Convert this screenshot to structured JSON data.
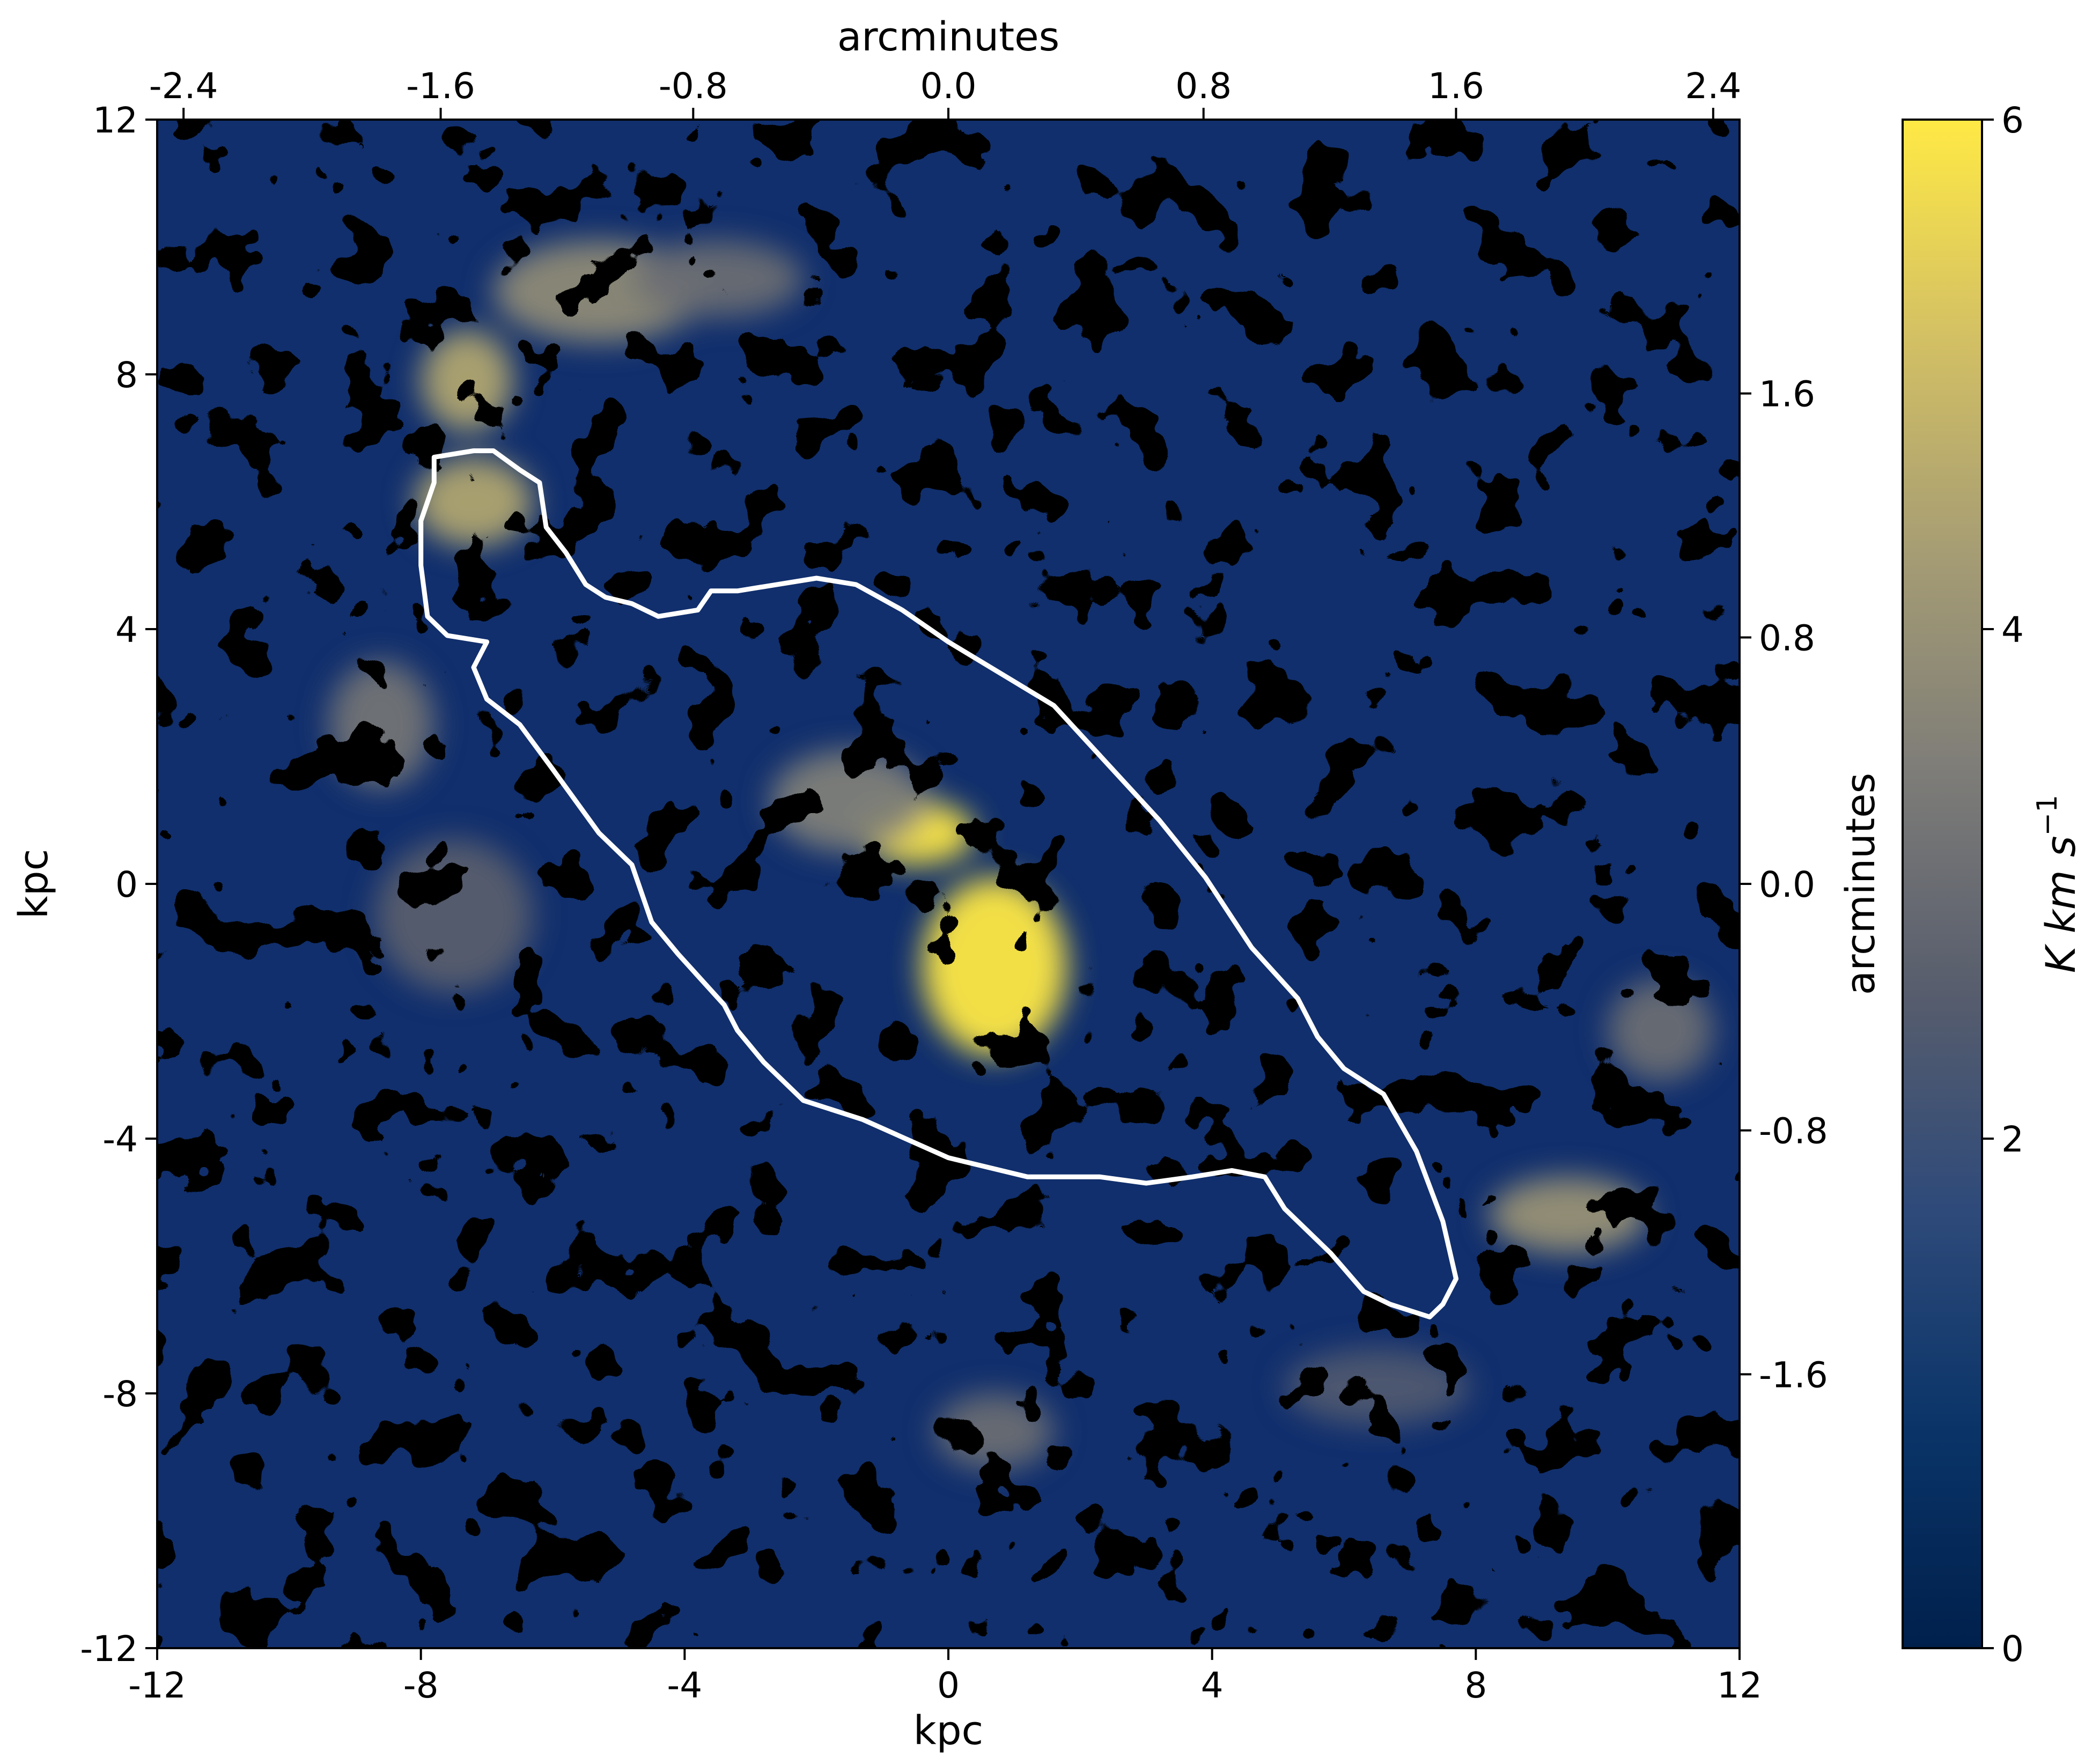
{
  "chart_data": {
    "type": "heatmap",
    "description_units": "kpc",
    "x_axis": {
      "label": "kpc",
      "range": [
        -12,
        12
      ],
      "ticks": [
        -12,
        -8,
        -4,
        0,
        4,
        8,
        12
      ],
      "tick_labels": [
        "-12",
        "-8",
        "-4",
        "0",
        "4",
        "8",
        "12"
      ]
    },
    "y_axis": {
      "label": "kpc",
      "range": [
        -12,
        12
      ],
      "ticks": [
        -12,
        -8,
        -4,
        0,
        4,
        8,
        12
      ],
      "tick_labels": [
        "-12",
        "-8",
        "-4",
        "0",
        "4",
        "8",
        "12"
      ]
    },
    "top_axis": {
      "label": "arcminutes",
      "tick_positions_kpc": [
        -11.6,
        -7.7,
        -3.87,
        0,
        3.87,
        7.7,
        11.6
      ],
      "tick_labels": [
        "-2.4",
        "-1.6",
        "-0.8",
        "0.0",
        "0.8",
        "1.6",
        "2.4"
      ]
    },
    "right_axis": {
      "label": "arcminutes",
      "tick_positions_kpc": [
        7.7,
        3.87,
        0,
        -3.87,
        -7.7
      ],
      "tick_labels": [
        "1.6",
        "0.8",
        "0.0",
        "-0.8",
        "-1.6"
      ]
    },
    "colorbar": {
      "label": "K km s",
      "label_superscript": "−1",
      "range": [
        0,
        6
      ],
      "ticks": [
        0,
        2,
        4,
        6
      ],
      "tick_labels": [
        "0",
        "2",
        "4",
        "6"
      ],
      "colormap": "cividis",
      "stops": [
        "#00204c",
        "#0a3468",
        "#2e4a7a",
        "#575d6d",
        "#7d7c78",
        "#a59c74",
        "#d3c064",
        "#ffe945"
      ]
    },
    "emission_peaks_kpc": [
      {
        "x": 0.7,
        "y": -1.3,
        "value": 6.0,
        "rx": 1.1,
        "ry": 1.4
      },
      {
        "x": -0.5,
        "y": 0.8,
        "value": 6.0,
        "rx": 0.9,
        "ry": 0.5
      },
      {
        "x": -1.5,
        "y": 1.3,
        "value": 3.5,
        "rx": 1.2,
        "ry": 0.8
      },
      {
        "x": -7.2,
        "y": 6.0,
        "value": 4.5,
        "rx": 0.9,
        "ry": 0.7
      },
      {
        "x": -7.3,
        "y": 7.9,
        "value": 4.5,
        "rx": 0.7,
        "ry": 0.8
      },
      {
        "x": -5.3,
        "y": 9.3,
        "value": 3.8,
        "rx": 1.6,
        "ry": 0.8
      },
      {
        "x": -3.5,
        "y": 9.5,
        "value": 3.0,
        "rx": 1.3,
        "ry": 0.6
      },
      {
        "x": -8.6,
        "y": 2.5,
        "value": 3.2,
        "rx": 0.8,
        "ry": 1.0
      },
      {
        "x": 9.4,
        "y": -5.2,
        "value": 4.0,
        "rx": 1.2,
        "ry": 0.6
      },
      {
        "x": 10.8,
        "y": -2.3,
        "value": 3.0,
        "rx": 0.8,
        "ry": 0.8
      },
      {
        "x": 0.7,
        "y": -8.6,
        "value": 3.0,
        "rx": 0.9,
        "ry": 0.6
      },
      {
        "x": -7.5,
        "y": -0.5,
        "value": 2.6,
        "rx": 1.2,
        "ry": 1.2
      },
      {
        "x": 6.5,
        "y": -7.9,
        "value": 2.4,
        "rx": 1.4,
        "ry": 0.6
      }
    ],
    "contour_kpc": [
      [
        -7.8,
        6.7
      ],
      [
        -7.2,
        6.8
      ],
      [
        -6.9,
        6.8
      ],
      [
        -6.5,
        6.5
      ],
      [
        -6.2,
        6.3
      ],
      [
        -6.1,
        5.6
      ],
      [
        -5.8,
        5.2
      ],
      [
        -5.5,
        4.7
      ],
      [
        -5.2,
        4.5
      ],
      [
        -4.8,
        4.4
      ],
      [
        -4.4,
        4.2
      ],
      [
        -3.8,
        4.3
      ],
      [
        -3.6,
        4.6
      ],
      [
        -3.2,
        4.6
      ],
      [
        -2.6,
        4.7
      ],
      [
        -2.0,
        4.8
      ],
      [
        -1.4,
        4.7
      ],
      [
        -0.7,
        4.3
      ],
      [
        0,
        3.8
      ],
      [
        0.8,
        3.3
      ],
      [
        1.6,
        2.8
      ],
      [
        2.4,
        1.9
      ],
      [
        3.2,
        1.0
      ],
      [
        3.9,
        0.1
      ],
      [
        4.6,
        -1.0
      ],
      [
        5.3,
        -1.8
      ],
      [
        5.6,
        -2.4
      ],
      [
        6.0,
        -2.9
      ],
      [
        6.6,
        -3.3
      ],
      [
        7.1,
        -4.2
      ],
      [
        7.5,
        -5.3
      ],
      [
        7.7,
        -6.2
      ],
      [
        7.5,
        -6.6
      ],
      [
        7.3,
        -6.8
      ],
      [
        6.7,
        -6.6
      ],
      [
        6.3,
        -6.4
      ],
      [
        5.8,
        -5.8
      ],
      [
        5.1,
        -5.1
      ],
      [
        4.8,
        -4.6
      ],
      [
        4.3,
        -4.5
      ],
      [
        3.7,
        -4.6
      ],
      [
        3.0,
        -4.7
      ],
      [
        2.3,
        -4.6
      ],
      [
        1.2,
        -4.6
      ],
      [
        0,
        -4.3
      ],
      [
        -1.3,
        -3.7
      ],
      [
        -2.2,
        -3.4
      ],
      [
        -2.8,
        -2.8
      ],
      [
        -3.2,
        -2.3
      ],
      [
        -3.4,
        -1.9
      ],
      [
        -4.1,
        -1.1
      ],
      [
        -4.5,
        -0.6
      ],
      [
        -4.8,
        0.3
      ],
      [
        -5.3,
        0.8
      ],
      [
        -6.0,
        1.8
      ],
      [
        -6.5,
        2.5
      ],
      [
        -7.0,
        2.9
      ],
      [
        -7.2,
        3.4
      ],
      [
        -7.0,
        3.8
      ],
      [
        -7.6,
        3.9
      ],
      [
        -7.9,
        4.2
      ],
      [
        -8.0,
        5.0
      ],
      [
        -8.0,
        5.7
      ],
      [
        -7.8,
        6.3
      ],
      [
        -7.8,
        6.7
      ]
    ]
  }
}
